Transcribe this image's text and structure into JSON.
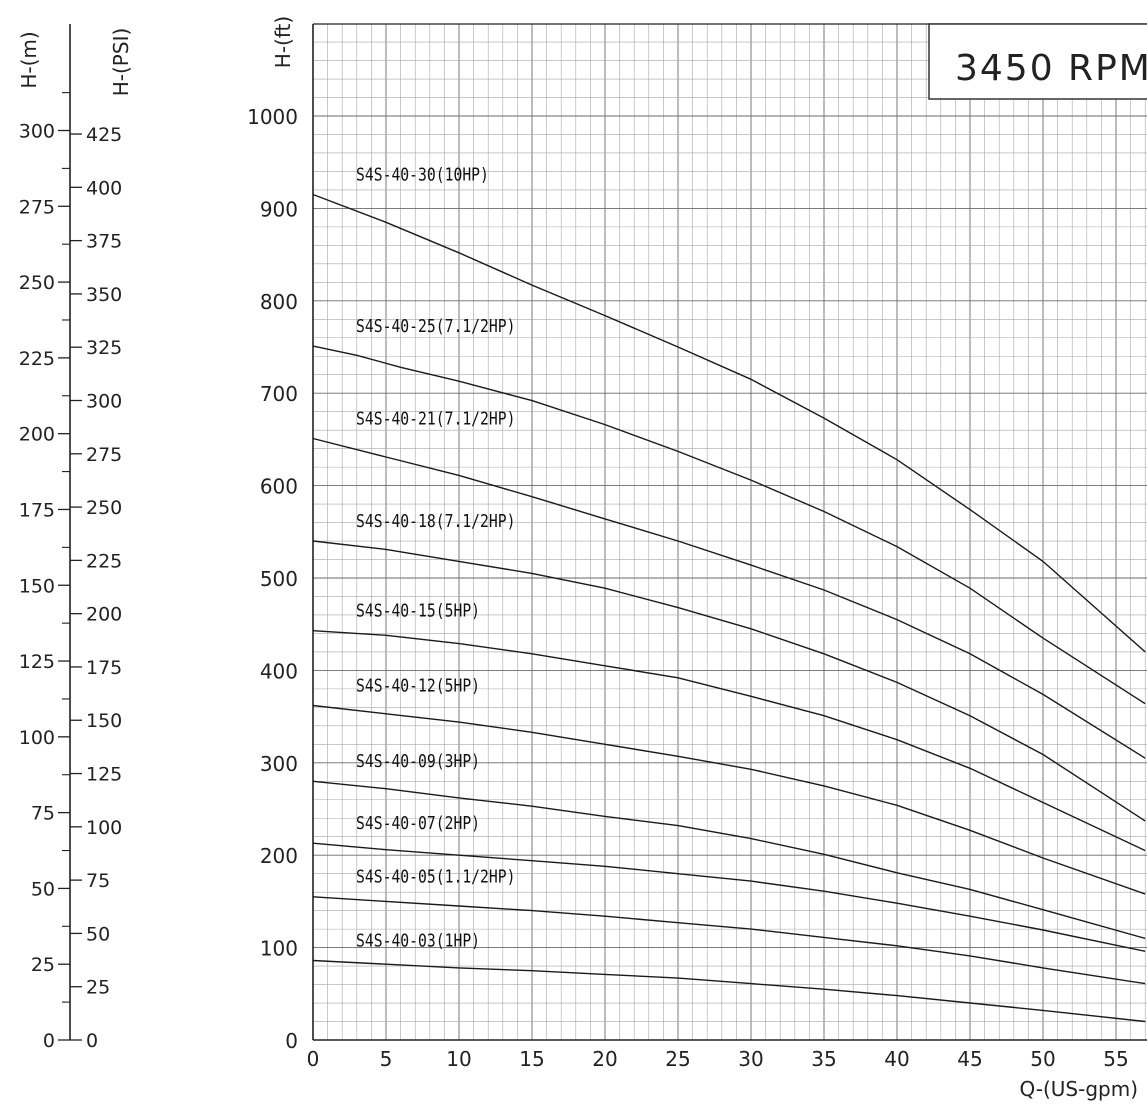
{
  "chart_data": {
    "type": "line",
    "title": "3450 RPM",
    "xlabel": "Q-(US-gpm)",
    "ylabel": "H-(ft)",
    "xlim": [
      0,
      57
    ],
    "ylim": [
      0,
      1000
    ],
    "x_ticks": [
      "0",
      "5",
      "10",
      "15",
      "20",
      "25",
      "30",
      "35",
      "40",
      "45",
      "50",
      "55"
    ],
    "y_ticks": [
      "0",
      "100",
      "200",
      "300",
      "400",
      "500",
      "600",
      "700",
      "800",
      "900",
      "1000"
    ],
    "grid": true,
    "secondary_axes": [
      {
        "label": "H-(m)",
        "ticks": [
          "0",
          "25",
          "50",
          "75",
          "100",
          "125",
          "150",
          "175",
          "200",
          "225",
          "250",
          "275",
          "300"
        ]
      },
      {
        "label": "H-(PSI)",
        "ticks": [
          "0",
          "25",
          "50",
          "75",
          "100",
          "125",
          "150",
          "175",
          "200",
          "225",
          "250",
          "275",
          "300",
          "325",
          "350",
          "375",
          "400",
          "425"
        ]
      }
    ],
    "series": [
      {
        "name": "S4S-40-30(10HP)",
        "x": [
          0,
          5,
          10,
          15,
          20,
          25,
          30,
          35,
          40,
          45,
          50,
          57
        ],
        "y": [
          915,
          885,
          852,
          817,
          784,
          750,
          715,
          673,
          628,
          574,
          518,
          420
        ]
      },
      {
        "name": "S4S-40-25(7.1/2HP)",
        "x": [
          0,
          3,
          6,
          10,
          15,
          20,
          25,
          30,
          35,
          40,
          45,
          50,
          57
        ],
        "y": [
          751,
          741,
          728,
          713,
          692,
          666,
          637,
          606,
          572,
          534,
          489,
          435,
          364
        ]
      },
      {
        "name": "S4S-40-21(7.1/2HP)",
        "x": [
          0,
          5,
          10,
          15,
          20,
          25,
          30,
          35,
          40,
          45,
          50,
          57
        ],
        "y": [
          651,
          631,
          611,
          588,
          564,
          540,
          514,
          487,
          455,
          418,
          374,
          305
        ]
      },
      {
        "name": "S4S-40-18(7.1/2HP)",
        "x": [
          0,
          5,
          10,
          15,
          20,
          25,
          30,
          35,
          40,
          45,
          50,
          57
        ],
        "y": [
          540,
          531,
          518,
          505,
          489,
          468,
          445,
          418,
          387,
          351,
          309,
          237
        ]
      },
      {
        "name": "S4S-40-15(5HP)",
        "x": [
          0,
          5,
          10,
          15,
          20,
          25,
          30,
          35,
          40,
          45,
          50,
          57
        ],
        "y": [
          443,
          438,
          429,
          418,
          405,
          392,
          372,
          351,
          325,
          294,
          257,
          205
        ]
      },
      {
        "name": "S4S-40-12(5HP)",
        "x": [
          0,
          5,
          10,
          15,
          20,
          25,
          30,
          35,
          40,
          45,
          50,
          57
        ],
        "y": [
          362,
          353,
          344,
          333,
          320,
          307,
          293,
          275,
          254,
          227,
          197,
          158
        ]
      },
      {
        "name": "S4S-40-09(3HP)",
        "x": [
          0,
          5,
          10,
          15,
          20,
          25,
          30,
          35,
          40,
          45,
          50,
          57
        ],
        "y": [
          280,
          272,
          262,
          253,
          242,
          232,
          218,
          201,
          181,
          163,
          141,
          110
        ]
      },
      {
        "name": "S4S-40-07(2HP)",
        "x": [
          0,
          5,
          10,
          15,
          20,
          25,
          30,
          35,
          40,
          45,
          50,
          57
        ],
        "y": [
          213,
          206,
          200,
          194,
          188,
          180,
          172,
          161,
          148,
          134,
          119,
          96
        ]
      },
      {
        "name": "S4S-40-05(1.1/2HP)",
        "x": [
          0,
          5,
          10,
          15,
          20,
          25,
          30,
          35,
          40,
          45,
          50,
          57
        ],
        "y": [
          155,
          150,
          145,
          140,
          134,
          127,
          120,
          111,
          102,
          91,
          78,
          61
        ]
      },
      {
        "name": "S4S-40-03(1HP)",
        "x": [
          0,
          5,
          10,
          15,
          20,
          25,
          30,
          35,
          40,
          45,
          50,
          57
        ],
        "y": [
          86,
          82,
          78,
          75,
          71,
          67,
          61,
          55,
          48,
          40,
          32,
          20
        ]
      }
    ]
  }
}
